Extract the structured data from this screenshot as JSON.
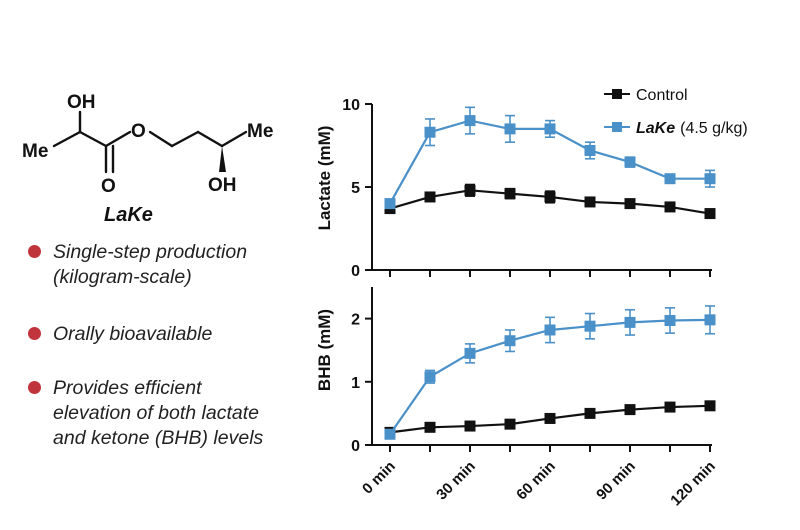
{
  "molecule": {
    "name": "LaKe",
    "atoms": {
      "oh_top": "OH",
      "me_left": "Me",
      "o_ester": "O",
      "o_carbonyl": "O",
      "me_right": "Me",
      "oh_bottom": "OH"
    }
  },
  "bullets": [
    {
      "lines": [
        "Single-step production",
        "(kilogram-scale)"
      ]
    },
    {
      "lines": [
        "Orally bioavailable"
      ]
    },
    {
      "lines": [
        "Provides efficient",
        "elevation of both lactate",
        "and ketone (BHB) levels"
      ]
    }
  ],
  "colors": {
    "control": "#111111",
    "lake": "#4a90c9",
    "bullet": "#c0343c"
  },
  "legend": {
    "control": "Control",
    "lake_name": "LaKe",
    "lake_dose": "(4.5 g/kg)"
  },
  "chart_data": [
    {
      "type": "line",
      "ylabel": "Lactate (mM)",
      "ylim": [
        0,
        10
      ],
      "yticks": [
        0,
        5,
        10
      ],
      "x": [
        0,
        15,
        30,
        45,
        60,
        75,
        90,
        105,
        120
      ],
      "series": [
        {
          "name": "Control",
          "values": [
            3.7,
            4.4,
            4.8,
            4.6,
            4.4,
            4.1,
            4.0,
            3.8,
            3.4
          ],
          "errors": [
            0.15,
            0.15,
            0.35,
            0.3,
            0.35,
            0.15,
            0.15,
            0.15,
            0.15
          ]
        },
        {
          "name": "LaKe (4.5 g/kg)",
          "values": [
            4.0,
            8.3,
            9.0,
            8.5,
            8.5,
            7.2,
            6.5,
            5.5,
            5.5
          ],
          "errors": [
            0.2,
            0.8,
            0.8,
            0.8,
            0.5,
            0.5,
            0.3,
            0.2,
            0.5
          ]
        }
      ]
    },
    {
      "type": "line",
      "ylabel": "BHB (mM)",
      "ylim": [
        0,
        2.5
      ],
      "yticks": [
        0,
        1,
        2
      ],
      "x": [
        0,
        15,
        30,
        45,
        60,
        75,
        90,
        105,
        120
      ],
      "xticklabels": [
        "0 min",
        "30 min",
        "60 min",
        "90 min",
        "120 min"
      ],
      "xtickvalues": [
        0,
        30,
        60,
        90,
        120
      ],
      "series": [
        {
          "name": "Control",
          "values": [
            0.2,
            0.28,
            0.3,
            0.33,
            0.42,
            0.5,
            0.56,
            0.6,
            0.62
          ],
          "errors": [
            0.03,
            0.03,
            0.03,
            0.03,
            0.03,
            0.03,
            0.03,
            0.03,
            0.03
          ]
        },
        {
          "name": "LaKe (4.5 g/kg)",
          "values": [
            0.17,
            1.08,
            1.45,
            1.65,
            1.82,
            1.88,
            1.94,
            1.97,
            1.98
          ],
          "errors": [
            0.05,
            0.1,
            0.15,
            0.17,
            0.2,
            0.2,
            0.2,
            0.2,
            0.22
          ]
        }
      ]
    }
  ]
}
